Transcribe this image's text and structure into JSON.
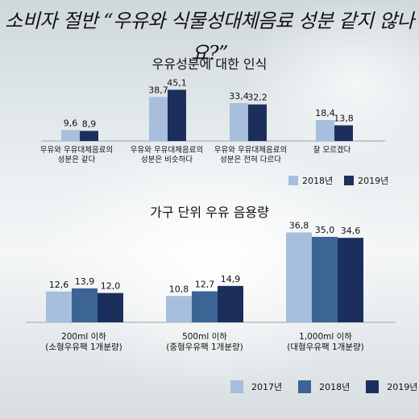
{
  "headline": "소비자 절반 “우유와 식물성대체음료 성분 같지 않나요?”",
  "chart_data": [
    {
      "type": "bar",
      "title": "우유성분에 대한 인식",
      "categories": [
        [
          "우유와 우유대체음료의",
          "성분은 같다"
        ],
        [
          "우유와 우유대체음료의",
          "성분은 비슷하다"
        ],
        [
          "우유와 우유대체음료의",
          "성분은 전혀 다르다"
        ],
        [
          "잘 모르겠다"
        ]
      ],
      "series": [
        {
          "name": "2018년",
          "color": "#a7bedc",
          "values": [
            9.6,
            38.7,
            33.4,
            18.4
          ],
          "labels": [
            "9,6",
            "38,7",
            "33,4",
            "18,4"
          ]
        },
        {
          "name": "2019년",
          "color": "#1c2f5c",
          "values": [
            8.9,
            45.1,
            32.2,
            13.8
          ],
          "labels": [
            "8,9",
            "45,1",
            "32,2",
            "13,8"
          ]
        }
      ],
      "legend_position": "bottom-right",
      "grid": false
    },
    {
      "type": "bar",
      "title": "가구 단위 우유 음용량",
      "categories": [
        [
          "200ml 이하",
          "(소형우유팩 1개분량)"
        ],
        [
          "500ml 이하",
          "(중형우유팩 1개분량)"
        ],
        [
          "1,000ml 이하",
          "(대형우유팩 1개분량)"
        ]
      ],
      "series": [
        {
          "name": "2017년",
          "color": "#a7bedc",
          "values": [
            12.6,
            10.8,
            36.8
          ],
          "labels": [
            "12,6",
            "10,8",
            "36,8"
          ]
        },
        {
          "name": "2018년",
          "color": "#3c6596",
          "values": [
            13.9,
            12.7,
            35.0
          ],
          "labels": [
            "13,9",
            "12,7",
            "35,0"
          ]
        },
        {
          "name": "2019년",
          "color": "#1c2f5c",
          "values": [
            12.0,
            14.9,
            34.6
          ],
          "labels": [
            "12,0",
            "14,9",
            "34,6"
          ]
        }
      ],
      "legend_position": "bottom-right",
      "grid": false
    }
  ]
}
